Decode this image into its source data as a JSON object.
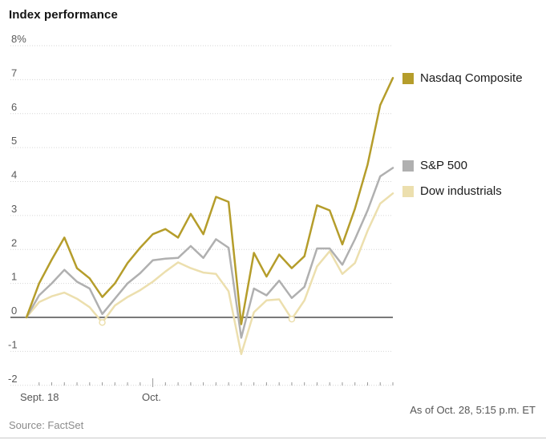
{
  "header": {
    "title": "Index performance"
  },
  "chart_data": {
    "type": "line",
    "title": "Index performance",
    "unit": "%",
    "ylim": [
      -2,
      8
    ],
    "grid": "horizontal-dotted",
    "baseline_value": 0,
    "colors": {
      "nasdaq": "#b59d2b",
      "sp500": "#b0b0b0",
      "dow": "#ecdfae",
      "gridline": "#d6d6d6",
      "zero_line": "#4d4d4d",
      "tick": "#999999"
    },
    "y_ticks": [
      {
        "value": 8,
        "label": "8%"
      },
      {
        "value": 7,
        "label": "7"
      },
      {
        "value": 6,
        "label": "6"
      },
      {
        "value": 5,
        "label": "5"
      },
      {
        "value": 4,
        "label": "4"
      },
      {
        "value": 3,
        "label": "3"
      },
      {
        "value": 2,
        "label": "2"
      },
      {
        "value": 1,
        "label": "1"
      },
      {
        "value": 0,
        "label": "0"
      },
      {
        "value": -1,
        "label": "-1"
      },
      {
        "value": -2,
        "label": "-2"
      }
    ],
    "x_axis": {
      "start_label": "Sept. 18",
      "month_label": "Oct.",
      "major_tick_index": 10
    },
    "series": [
      {
        "id": "nasdaq-composite",
        "name": "Nasdaq Composite",
        "color": "#b59d2b",
        "values": [
          0,
          1.0,
          1.7,
          2.35,
          1.45,
          1.15,
          0.6,
          1.0,
          1.6,
          2.05,
          2.45,
          2.6,
          2.35,
          3.05,
          2.45,
          3.55,
          3.4,
          -0.2,
          1.9,
          1.2,
          1.85,
          1.45,
          1.8,
          3.3,
          3.15,
          2.15,
          3.2,
          4.5,
          6.25,
          7.05
        ]
      },
      {
        "id": "sp-500",
        "name": "S&P 500",
        "color": "#b0b0b0",
        "values": [
          0,
          0.65,
          1.0,
          1.4,
          1.05,
          0.85,
          0.1,
          0.55,
          1.0,
          1.3,
          1.68,
          1.73,
          1.75,
          2.1,
          1.75,
          2.3,
          2.05,
          -0.6,
          0.85,
          0.65,
          1.08,
          0.57,
          0.9,
          2.03,
          2.03,
          1.55,
          2.3,
          3.15,
          4.15,
          4.4
        ]
      },
      {
        "id": "dow-industrials",
        "name": "Dow industrials",
        "color": "#ecdfae",
        "values": [
          0,
          0.45,
          0.62,
          0.73,
          0.55,
          0.3,
          -0.15,
          0.35,
          0.6,
          0.8,
          1.05,
          1.35,
          1.62,
          1.45,
          1.32,
          1.28,
          0.77,
          -1.08,
          0.15,
          0.5,
          0.53,
          -0.05,
          0.5,
          1.5,
          1.95,
          1.28,
          1.6,
          2.55,
          3.35,
          3.65
        ],
        "open_marker_indices": [
          6,
          21
        ]
      }
    ]
  },
  "legend": {
    "items": [
      {
        "label": "Nasdaq Composite",
        "color": "#b59d2b"
      },
      {
        "label": "S&P 500",
        "color": "#b0b0b0"
      },
      {
        "label": "Dow industrials",
        "color": "#ecdfae"
      }
    ]
  },
  "x_labels": {
    "start": "Sept. 18",
    "month": "Oct."
  },
  "footer": {
    "source": "Source: FactSet",
    "as_of": "As of Oct. 28, 5:15 p.m. ET"
  }
}
